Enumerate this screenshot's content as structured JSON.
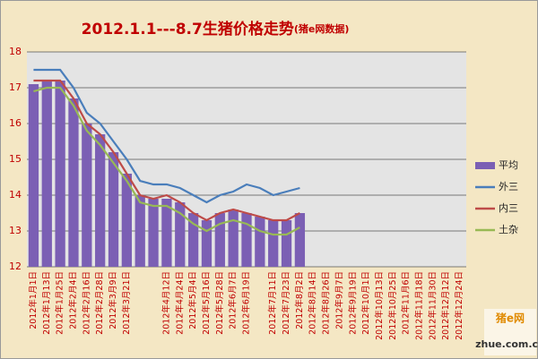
{
  "chart_data": {
    "type": "bar-line",
    "title": "2012.1.1---8.7生猪价格走势",
    "subtitle": "(猪e网数据)",
    "categories": [
      "2012年1月1日",
      "2012年1月13日",
      "2012年1月25日",
      "2012年2月4日",
      "2012年2月16日",
      "2012年2月28日",
      "2012年3月9日",
      "2012年3月21日",
      null,
      null,
      "2012年4月12日",
      "2012年4月24日",
      "2012年5月4日",
      "2012年5月16日",
      "2012年5月28日",
      "2012年6月7日",
      "2012年6月19日",
      null,
      "2012年7月11日",
      "2012年7月23日",
      "2012年8月2日",
      "2012年8月14日",
      "2012年8月26日",
      "2012年9月7日",
      "2012年9月19日",
      "2012年10月1日",
      "2012年10月13日",
      "2012年10月25日",
      "2012年11月6日",
      "2012年11月18日",
      "2012年11月30日",
      "2012年12月12日",
      "2012年12月24日"
    ],
    "series": [
      {
        "name": "平均",
        "kind": "bar",
        "color": "#7b5fb4",
        "values": [
          17.1,
          17.2,
          17.2,
          16.7,
          16.0,
          15.7,
          15.2,
          14.6,
          14.0,
          13.9,
          13.9,
          13.8,
          13.5,
          13.3,
          13.5,
          13.6,
          13.5,
          13.4,
          13.3,
          13.3,
          13.5,
          null,
          null,
          null,
          null,
          null,
          null,
          null,
          null,
          null,
          null,
          null,
          null
        ]
      },
      {
        "name": "外三",
        "kind": "line",
        "color": "#4a7ebb",
        "values": [
          17.5,
          17.5,
          17.5,
          17.0,
          16.3,
          16.0,
          15.5,
          15.0,
          14.4,
          14.3,
          14.3,
          14.2,
          14.0,
          13.8,
          14.0,
          14.1,
          14.3,
          14.2,
          14.0,
          14.1,
          14.2,
          null,
          null,
          null,
          null,
          null,
          null,
          null,
          null,
          null,
          null,
          null,
          null
        ]
      },
      {
        "name": "内三",
        "kind": "line",
        "color": "#be4b48",
        "values": [
          17.2,
          17.2,
          17.2,
          16.7,
          16.0,
          15.7,
          15.2,
          14.6,
          14.0,
          13.9,
          14.0,
          13.8,
          13.5,
          13.3,
          13.5,
          13.6,
          13.5,
          13.4,
          13.3,
          13.3,
          13.5,
          null,
          null,
          null,
          null,
          null,
          null,
          null,
          null,
          null,
          null,
          null,
          null
        ]
      },
      {
        "name": "土杂",
        "kind": "line",
        "color": "#98b954",
        "values": [
          16.9,
          17.0,
          17.0,
          16.5,
          15.8,
          15.4,
          14.9,
          14.4,
          13.8,
          13.7,
          13.7,
          13.5,
          13.2,
          13.0,
          13.2,
          13.3,
          13.2,
          13.0,
          12.9,
          12.9,
          13.1,
          null,
          null,
          null,
          null,
          null,
          null,
          null,
          null,
          null,
          null,
          null,
          null
        ]
      }
    ],
    "ylim": [
      12,
      18
    ],
    "yticks": [
      12,
      13,
      14,
      15,
      16,
      17,
      18
    ],
    "grid": true,
    "legend": "right"
  },
  "watermark": {
    "name": "猪e网",
    "url": "zhue.com.cn"
  }
}
